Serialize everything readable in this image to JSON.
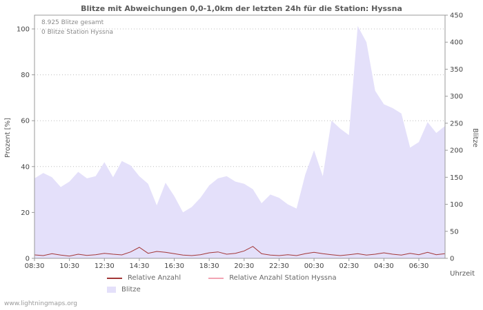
{
  "title": "Blitze mit Abweichungen 0,0-1,0km der letzten 24h für die Station: Hyssna",
  "annotations": {
    "total": "8.925 Blitze gesamt",
    "station": "0 Blitze Station Hyssna"
  },
  "axes": {
    "left_label": "Prozent  [%]",
    "right_label": "Blitze",
    "x_label": "Uhrzeit",
    "left_ticks": [
      0,
      20,
      40,
      60,
      80,
      100
    ],
    "right_ticks": [
      0,
      50,
      100,
      150,
      200,
      250,
      300,
      350,
      400,
      450
    ],
    "x_ticks": [
      "08:30",
      "10:30",
      "12:30",
      "14:30",
      "16:30",
      "18:30",
      "20:30",
      "22:30",
      "00:30",
      "02:30",
      "04:30",
      "06:30"
    ]
  },
  "legend": [
    {
      "label": "Relative Anzahl",
      "color": "#a23535",
      "type": "line"
    },
    {
      "label": "Relative Anzahl Station Hyssna",
      "color": "#f2a4b2",
      "type": "line"
    },
    {
      "label": "Blitze",
      "color": "#e4e0fa",
      "type": "area"
    }
  ],
  "footer": "www.lightningmaps.org",
  "colors": {
    "area_fill": "#e4e0fa",
    "line_relative": "#a23535",
    "line_station": "#f2a4b2",
    "grid": "#bbbbbb",
    "border": "#999999"
  },
  "chart_data": {
    "type": "area",
    "title": "Blitze mit Abweichungen 0,0-1,0km der letzten 24h für die Station: Hyssna",
    "xlabel": "Uhrzeit",
    "ylabel_left": "Prozent [%]",
    "ylabel_right": "Blitze",
    "ylim_left": [
      0,
      100
    ],
    "ylim_right": [
      0,
      450
    ],
    "grid": true,
    "legend_position": "bottom",
    "x": [
      "08:30",
      "09:00",
      "09:30",
      "10:00",
      "10:30",
      "11:00",
      "11:30",
      "12:00",
      "12:30",
      "13:00",
      "13:30",
      "14:00",
      "14:30",
      "15:00",
      "15:30",
      "16:00",
      "16:30",
      "17:00",
      "17:30",
      "18:00",
      "18:30",
      "19:00",
      "19:30",
      "20:00",
      "20:30",
      "21:00",
      "21:30",
      "22:00",
      "22:30",
      "23:00",
      "23:30",
      "00:00",
      "00:30",
      "01:00",
      "01:30",
      "02:00",
      "02:30",
      "03:00",
      "03:30",
      "04:00",
      "04:30",
      "05:00",
      "05:30",
      "06:00",
      "06:30",
      "07:00",
      "07:30",
      "08:00"
    ],
    "series": [
      {
        "name": "Blitze",
        "type": "area",
        "axis": "right",
        "color": "#e4e0fa",
        "values": [
          148,
          158,
          150,
          132,
          142,
          160,
          148,
          152,
          178,
          150,
          180,
          172,
          152,
          138,
          98,
          140,
          115,
          85,
          95,
          112,
          135,
          148,
          152,
          142,
          138,
          128,
          102,
          118,
          112,
          100,
          92,
          155,
          200,
          152,
          255,
          240,
          228,
          430,
          400,
          310,
          285,
          278,
          268,
          205,
          215,
          252,
          232,
          245
        ]
      },
      {
        "name": "Relative Anzahl",
        "type": "line",
        "axis": "left",
        "color": "#a23535",
        "values": [
          1.5,
          1.2,
          2.0,
          1.4,
          1.0,
          1.8,
          1.3,
          1.6,
          2.2,
          1.8,
          1.5,
          2.8,
          4.8,
          2.2,
          3.0,
          2.6,
          2.0,
          1.4,
          1.2,
          1.6,
          2.4,
          2.8,
          1.8,
          2.2,
          3.2,
          5.2,
          2.0,
          1.4,
          1.2,
          1.6,
          1.2,
          2.0,
          2.6,
          2.0,
          1.6,
          1.2,
          1.6,
          2.0,
          1.4,
          1.8,
          2.4,
          1.8,
          1.4,
          2.2,
          1.6,
          2.6,
          1.6,
          2.0
        ]
      },
      {
        "name": "Relative Anzahl Station Hyssna",
        "type": "line",
        "axis": "left",
        "color": "#f2a4b2",
        "values": [
          0,
          0,
          0,
          0,
          0,
          0,
          0,
          0,
          0,
          0,
          0,
          0,
          0,
          0,
          0,
          0,
          0,
          0,
          0,
          0,
          0,
          0,
          0,
          0,
          0,
          0,
          0,
          0,
          0,
          0,
          0,
          0,
          0,
          0,
          0,
          0,
          0,
          0,
          0,
          0,
          0,
          0,
          0,
          0,
          0,
          0,
          0,
          0
        ]
      }
    ]
  }
}
